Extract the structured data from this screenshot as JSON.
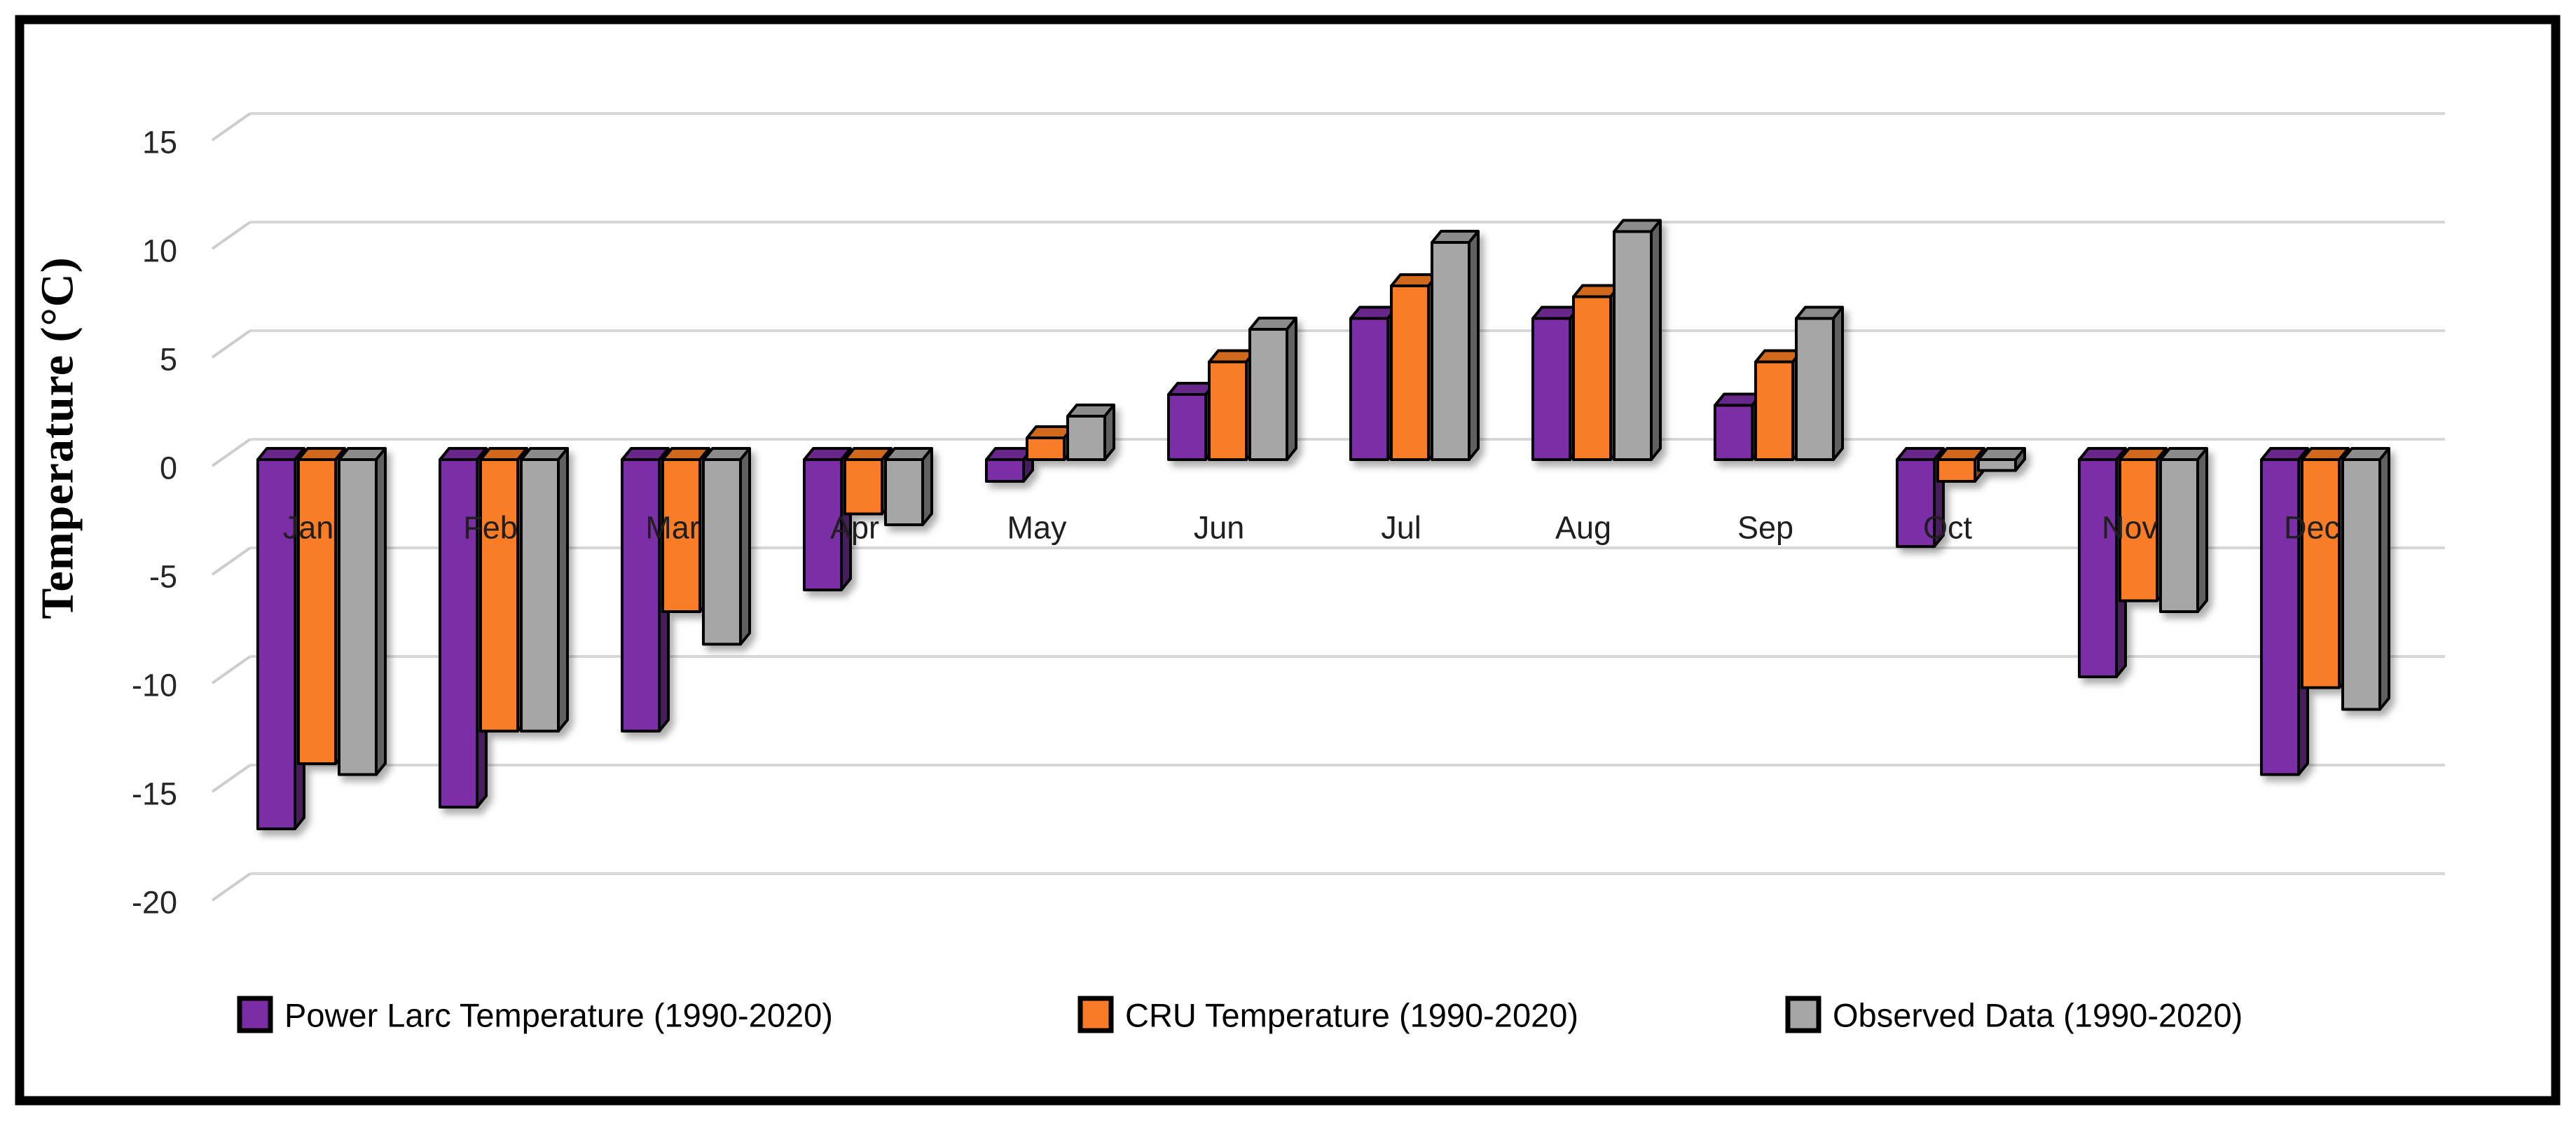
{
  "chart_data": {
    "type": "bar",
    "style": "3d-clustered-column",
    "title": "",
    "xlabel": "",
    "ylabel": "Temperature (°C)",
    "ylim": [
      -20,
      15
    ],
    "ytick_step": 5,
    "yticks": [
      15,
      10,
      5,
      0,
      -5,
      -10,
      -15,
      -20
    ],
    "grid": true,
    "legend_position": "bottom",
    "categories": [
      "Jan",
      "Feb",
      "Mar",
      "Apr",
      "May",
      "Jun",
      "Jul",
      "Aug",
      "Sep",
      "Oct",
      "Nov",
      "Dec"
    ],
    "series": [
      {
        "name": "Power Larc Temperature (1990-2020)",
        "color": "#7C2DA6",
        "values": [
          -17,
          -16,
          -12.5,
          -6,
          -1,
          3,
          6.5,
          6.5,
          2.5,
          -4,
          -10,
          -14.5
        ]
      },
      {
        "name": "CRU Temperature (1990-2020)",
        "color": "#F97B25",
        "values": [
          -14,
          -12.5,
          -7,
          -2.5,
          1,
          4.5,
          8,
          7.5,
          4.5,
          -1,
          -6.5,
          -10.5
        ]
      },
      {
        "name": "Observed Data (1990-2020)",
        "color": "#A6A6A6",
        "values": [
          -14.5,
          -12.5,
          -8.5,
          -3,
          2,
          6,
          10,
          10.5,
          6.5,
          -0.5,
          -7,
          -11.5
        ]
      }
    ]
  },
  "colors": {
    "frame": "#000000",
    "gridline": "#D7D7D7",
    "tick_connector": "#CDCDCD",
    "bar_outline": "#000000",
    "tick_text": "#262626",
    "category_text": "#1F1F1F",
    "legend_text": "#000000",
    "background": "#FFFFFF"
  }
}
